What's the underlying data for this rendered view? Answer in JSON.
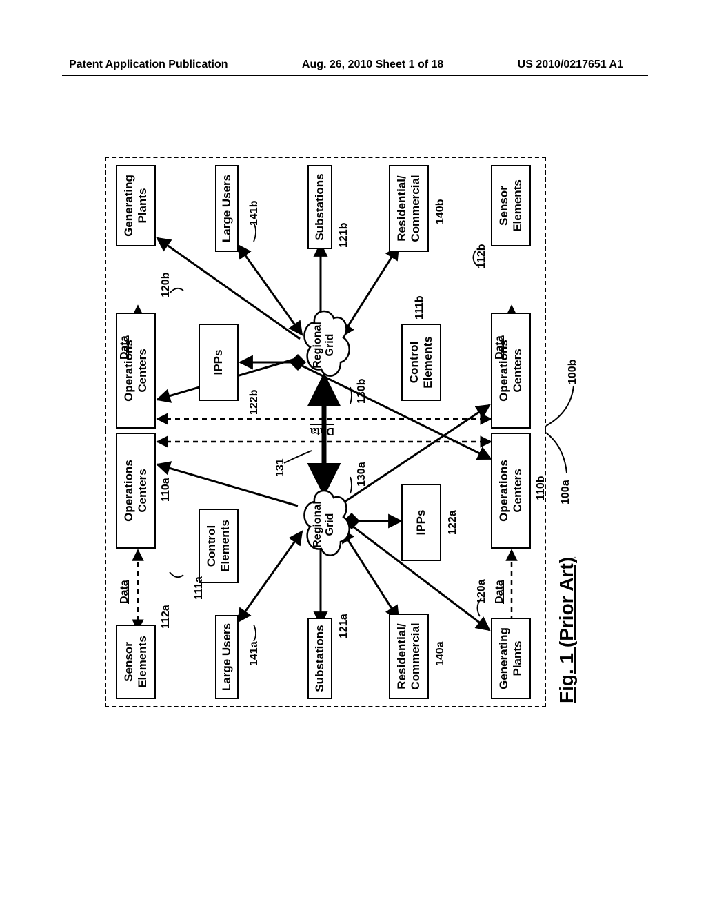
{
  "header": {
    "left": "Patent Application Publication",
    "center": "Aug. 26, 2010  Sheet 1 of 18",
    "right": "US 2010/0217651 A1"
  },
  "figure": {
    "caption": "Fig. 1 (Prior Art)",
    "boxes": {
      "sensor_a": "Sensor\nElements",
      "ops_a_top": "Operations\nCenters",
      "ops_b_top": "Operations\nCenters",
      "gen_b": "Generating\nPlants",
      "large_a": "Large Users",
      "control_a": "Control\nElements",
      "ipps_b": "IPPs",
      "large_b": "Large Users",
      "sub_a": "Substations",
      "sub_b": "Substations",
      "res_a": "Residential/\nCommercial",
      "ipps_a": "IPPs",
      "control_b": "Control\nElements",
      "res_b": "Residential/\nCommercial",
      "gen_a": "Generating\nPlants",
      "ops_a_bot": "Operations\nCenters",
      "ops_b_bot": "Operations\nCenters",
      "sensor_b": "Sensor\nElements"
    },
    "clouds": {
      "grid_a": "Regional\nGrid",
      "grid_b": "Regional\nGrid"
    },
    "labels": {
      "l110a": "110a",
      "l111a": "111a",
      "l112a": "112a",
      "l120a": "120a",
      "l120b": "120b",
      "l121a": "121a",
      "l121b": "121b",
      "l122a": "122a",
      "l122b": "122b",
      "l130a": "130a",
      "l130b": "130b",
      "l131": "131",
      "l140a": "140a",
      "l140b": "140b",
      "l141a": "141a",
      "l141b": "141b",
      "l110b": "110b",
      "l111b": "111b",
      "l112b": "112b",
      "l100a": "100a",
      "l100b": "100b"
    },
    "data_label": "Data"
  },
  "colors": {
    "line": "#000000",
    "bg": "#ffffff"
  }
}
